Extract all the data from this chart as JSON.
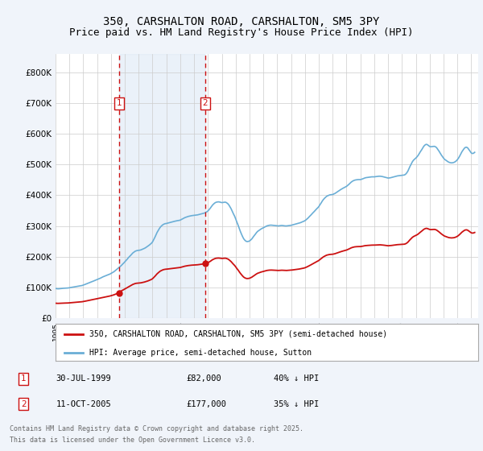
{
  "title": "350, CARSHALTON ROAD, CARSHALTON, SM5 3PY",
  "subtitle": "Price paid vs. HM Land Registry's House Price Index (HPI)",
  "title_fontsize": 10,
  "subtitle_fontsize": 9,
  "ylabel_ticks": [
    "£0",
    "£100K",
    "£200K",
    "£300K",
    "£400K",
    "£500K",
    "£600K",
    "£700K",
    "£800K"
  ],
  "ytick_vals": [
    0,
    100000,
    200000,
    300000,
    400000,
    500000,
    600000,
    700000,
    800000
  ],
  "ylim": [
    0,
    860000
  ],
  "xlim_start": 1995.0,
  "xlim_end": 2025.5,
  "background_color": "#f0f4fa",
  "plot_bg_color": "#ffffff",
  "grid_color": "#cccccc",
  "hpi_color": "#6aaed6",
  "price_color": "#cc1111",
  "marker1_date": 1999.58,
  "marker1_price": 82000,
  "marker2_date": 2005.79,
  "marker2_price": 177000,
  "marker_color": "#cc1111",
  "vline_color": "#cc1111",
  "shade_color": "#dce8f5",
  "legend_label1": "350, CARSHALTON ROAD, CARSHALTON, SM5 3PY (semi-detached house)",
  "legend_label2": "HPI: Average price, semi-detached house, Sutton",
  "footer1": "Contains HM Land Registry data © Crown copyright and database right 2025.",
  "footer2": "This data is licensed under the Open Government Licence v3.0.",
  "table_row1_num": "1",
  "table_row1_date": "30-JUL-1999",
  "table_row1_price": "£82,000",
  "table_row1_hpi": "40% ↓ HPI",
  "table_row2_num": "2",
  "table_row2_date": "11-OCT-2005",
  "table_row2_price": "£177,000",
  "table_row2_hpi": "35% ↓ HPI",
  "hpi_monthly": [
    [
      1995.0,
      96000
    ],
    [
      1995.08,
      95500
    ],
    [
      1995.17,
      95000
    ],
    [
      1995.25,
      95200
    ],
    [
      1995.33,
      95500
    ],
    [
      1995.42,
      96000
    ],
    [
      1995.5,
      96500
    ],
    [
      1995.58,
      96800
    ],
    [
      1995.67,
      97000
    ],
    [
      1995.75,
      97200
    ],
    [
      1995.83,
      97500
    ],
    [
      1995.92,
      97800
    ],
    [
      1996.0,
      98500
    ],
    [
      1996.08,
      99000
    ],
    [
      1996.17,
      99800
    ],
    [
      1996.25,
      100500
    ],
    [
      1996.33,
      101000
    ],
    [
      1996.42,
      101800
    ],
    [
      1996.5,
      102500
    ],
    [
      1996.58,
      103000
    ],
    [
      1996.67,
      103800
    ],
    [
      1996.75,
      104500
    ],
    [
      1996.83,
      105000
    ],
    [
      1996.92,
      105800
    ],
    [
      1997.0,
      107000
    ],
    [
      1997.08,
      108500
    ],
    [
      1997.17,
      110000
    ],
    [
      1997.25,
      111500
    ],
    [
      1997.33,
      113000
    ],
    [
      1997.42,
      114500
    ],
    [
      1997.5,
      116000
    ],
    [
      1997.58,
      117500
    ],
    [
      1997.67,
      119000
    ],
    [
      1997.75,
      120500
    ],
    [
      1997.83,
      122000
    ],
    [
      1997.92,
      123500
    ],
    [
      1998.0,
      125000
    ],
    [
      1998.08,
      126800
    ],
    [
      1998.17,
      128500
    ],
    [
      1998.25,
      130000
    ],
    [
      1998.33,
      132000
    ],
    [
      1998.42,
      134000
    ],
    [
      1998.5,
      135500
    ],
    [
      1998.58,
      137000
    ],
    [
      1998.67,
      138500
    ],
    [
      1998.75,
      140000
    ],
    [
      1998.83,
      141500
    ],
    [
      1998.92,
      143000
    ],
    [
      1999.0,
      145000
    ],
    [
      1999.08,
      147000
    ],
    [
      1999.17,
      149500
    ],
    [
      1999.25,
      152000
    ],
    [
      1999.33,
      155000
    ],
    [
      1999.42,
      158000
    ],
    [
      1999.5,
      161000
    ],
    [
      1999.58,
      164000
    ],
    [
      1999.67,
      167500
    ],
    [
      1999.75,
      171000
    ],
    [
      1999.83,
      175000
    ],
    [
      1999.92,
      179000
    ],
    [
      2000.0,
      183000
    ],
    [
      2000.08,
      187000
    ],
    [
      2000.17,
      191500
    ],
    [
      2000.25,
      196000
    ],
    [
      2000.33,
      200000
    ],
    [
      2000.42,
      204000
    ],
    [
      2000.5,
      208000
    ],
    [
      2000.58,
      212000
    ],
    [
      2000.67,
      215000
    ],
    [
      2000.75,
      217500
    ],
    [
      2000.83,
      219000
    ],
    [
      2000.92,
      220000
    ],
    [
      2001.0,
      220500
    ],
    [
      2001.08,
      221000
    ],
    [
      2001.17,
      222000
    ],
    [
      2001.25,
      223500
    ],
    [
      2001.33,
      225000
    ],
    [
      2001.42,
      227000
    ],
    [
      2001.5,
      229000
    ],
    [
      2001.58,
      231500
    ],
    [
      2001.67,
      234000
    ],
    [
      2001.75,
      237000
    ],
    [
      2001.83,
      240000
    ],
    [
      2001.92,
      243500
    ],
    [
      2002.0,
      248000
    ],
    [
      2002.08,
      255000
    ],
    [
      2002.17,
      263000
    ],
    [
      2002.25,
      271000
    ],
    [
      2002.33,
      279000
    ],
    [
      2002.42,
      286000
    ],
    [
      2002.5,
      292000
    ],
    [
      2002.58,
      297000
    ],
    [
      2002.67,
      301000
    ],
    [
      2002.75,
      304000
    ],
    [
      2002.83,
      306000
    ],
    [
      2002.92,
      307500
    ],
    [
      2003.0,
      308000
    ],
    [
      2003.08,
      309000
    ],
    [
      2003.17,
      310000
    ],
    [
      2003.25,
      311000
    ],
    [
      2003.33,
      312000
    ],
    [
      2003.42,
      313000
    ],
    [
      2003.5,
      314000
    ],
    [
      2003.58,
      315000
    ],
    [
      2003.67,
      316000
    ],
    [
      2003.75,
      317000
    ],
    [
      2003.83,
      317500
    ],
    [
      2003.92,
      318000
    ],
    [
      2004.0,
      319000
    ],
    [
      2004.08,
      321000
    ],
    [
      2004.17,
      323000
    ],
    [
      2004.25,
      325000
    ],
    [
      2004.33,
      327000
    ],
    [
      2004.42,
      328500
    ],
    [
      2004.5,
      330000
    ],
    [
      2004.58,
      331000
    ],
    [
      2004.67,
      332000
    ],
    [
      2004.75,
      333000
    ],
    [
      2004.83,
      333500
    ],
    [
      2004.92,
      334000
    ],
    [
      2005.0,
      334500
    ],
    [
      2005.08,
      335000
    ],
    [
      2005.17,
      335500
    ],
    [
      2005.25,
      336000
    ],
    [
      2005.33,
      337000
    ],
    [
      2005.42,
      338000
    ],
    [
      2005.5,
      339000
    ],
    [
      2005.58,
      340000
    ],
    [
      2005.67,
      341000
    ],
    [
      2005.75,
      342000
    ],
    [
      2005.83,
      344000
    ],
    [
      2005.92,
      346000
    ],
    [
      2006.0,
      349000
    ],
    [
      2006.08,
      353000
    ],
    [
      2006.17,
      358000
    ],
    [
      2006.25,
      363000
    ],
    [
      2006.33,
      368000
    ],
    [
      2006.42,
      372000
    ],
    [
      2006.5,
      375000
    ],
    [
      2006.58,
      377000
    ],
    [
      2006.67,
      378000
    ],
    [
      2006.75,
      378500
    ],
    [
      2006.83,
      378000
    ],
    [
      2006.92,
      377000
    ],
    [
      2007.0,
      376000
    ],
    [
      2007.08,
      376500
    ],
    [
      2007.17,
      377000
    ],
    [
      2007.25,
      377500
    ],
    [
      2007.33,
      376000
    ],
    [
      2007.42,
      373000
    ],
    [
      2007.5,
      369000
    ],
    [
      2007.58,
      363000
    ],
    [
      2007.67,
      356000
    ],
    [
      2007.75,
      348000
    ],
    [
      2007.83,
      340000
    ],
    [
      2007.92,
      332000
    ],
    [
      2008.0,
      323000
    ],
    [
      2008.08,
      313000
    ],
    [
      2008.17,
      303000
    ],
    [
      2008.25,
      293000
    ],
    [
      2008.33,
      283000
    ],
    [
      2008.42,
      273000
    ],
    [
      2008.5,
      265000
    ],
    [
      2008.58,
      258000
    ],
    [
      2008.67,
      253000
    ],
    [
      2008.75,
      250000
    ],
    [
      2008.83,
      249000
    ],
    [
      2008.92,
      249500
    ],
    [
      2009.0,
      251000
    ],
    [
      2009.08,
      254000
    ],
    [
      2009.17,
      258000
    ],
    [
      2009.25,
      263000
    ],
    [
      2009.33,
      268000
    ],
    [
      2009.42,
      273000
    ],
    [
      2009.5,
      278000
    ],
    [
      2009.58,
      282000
    ],
    [
      2009.67,
      285000
    ],
    [
      2009.75,
      288000
    ],
    [
      2009.83,
      290000
    ],
    [
      2009.92,
      292000
    ],
    [
      2010.0,
      294000
    ],
    [
      2010.08,
      296000
    ],
    [
      2010.17,
      298000
    ],
    [
      2010.25,
      300000
    ],
    [
      2010.33,
      301000
    ],
    [
      2010.42,
      302000
    ],
    [
      2010.5,
      302500
    ],
    [
      2010.58,
      302500
    ],
    [
      2010.67,
      302000
    ],
    [
      2010.75,
      301500
    ],
    [
      2010.83,
      301000
    ],
    [
      2010.92,
      300500
    ],
    [
      2011.0,
      300000
    ],
    [
      2011.08,
      300000
    ],
    [
      2011.17,
      300500
    ],
    [
      2011.25,
      301000
    ],
    [
      2011.33,
      301500
    ],
    [
      2011.42,
      301000
    ],
    [
      2011.5,
      300500
    ],
    [
      2011.58,
      300000
    ],
    [
      2011.67,
      300000
    ],
    [
      2011.75,
      300500
    ],
    [
      2011.83,
      301000
    ],
    [
      2011.92,
      301500
    ],
    [
      2012.0,
      302000
    ],
    [
      2012.08,
      303000
    ],
    [
      2012.17,
      304000
    ],
    [
      2012.25,
      305000
    ],
    [
      2012.33,
      306000
    ],
    [
      2012.42,
      307000
    ],
    [
      2012.5,
      308000
    ],
    [
      2012.58,
      309000
    ],
    [
      2012.67,
      310500
    ],
    [
      2012.75,
      312000
    ],
    [
      2012.83,
      313500
    ],
    [
      2012.92,
      315000
    ],
    [
      2013.0,
      317000
    ],
    [
      2013.08,
      320000
    ],
    [
      2013.17,
      323500
    ],
    [
      2013.25,
      327000
    ],
    [
      2013.33,
      331000
    ],
    [
      2013.42,
      335000
    ],
    [
      2013.5,
      339000
    ],
    [
      2013.58,
      343000
    ],
    [
      2013.67,
      347000
    ],
    [
      2013.75,
      351000
    ],
    [
      2013.83,
      355000
    ],
    [
      2013.92,
      359000
    ],
    [
      2014.0,
      363000
    ],
    [
      2014.08,
      369000
    ],
    [
      2014.17,
      375000
    ],
    [
      2014.25,
      381000
    ],
    [
      2014.33,
      386000
    ],
    [
      2014.42,
      390500
    ],
    [
      2014.5,
      394000
    ],
    [
      2014.58,
      397000
    ],
    [
      2014.67,
      399000
    ],
    [
      2014.75,
      400500
    ],
    [
      2014.83,
      401500
    ],
    [
      2014.92,
      402000
    ],
    [
      2015.0,
      402500
    ],
    [
      2015.08,
      404000
    ],
    [
      2015.17,
      406000
    ],
    [
      2015.25,
      408500
    ],
    [
      2015.33,
      411000
    ],
    [
      2015.42,
      413500
    ],
    [
      2015.5,
      416000
    ],
    [
      2015.58,
      418500
    ],
    [
      2015.67,
      421000
    ],
    [
      2015.75,
      423000
    ],
    [
      2015.83,
      425000
    ],
    [
      2015.92,
      427000
    ],
    [
      2016.0,
      429000
    ],
    [
      2016.08,
      432000
    ],
    [
      2016.17,
      435500
    ],
    [
      2016.25,
      439000
    ],
    [
      2016.33,
      442500
    ],
    [
      2016.42,
      445500
    ],
    [
      2016.5,
      447500
    ],
    [
      2016.58,
      449000
    ],
    [
      2016.67,
      450000
    ],
    [
      2016.75,
      450500
    ],
    [
      2016.83,
      451000
    ],
    [
      2016.92,
      451000
    ],
    [
      2017.0,
      451000
    ],
    [
      2017.08,
      452000
    ],
    [
      2017.17,
      453500
    ],
    [
      2017.25,
      455000
    ],
    [
      2017.33,
      456500
    ],
    [
      2017.42,
      457500
    ],
    [
      2017.5,
      458000
    ],
    [
      2017.58,
      458500
    ],
    [
      2017.67,
      459000
    ],
    [
      2017.75,
      459500
    ],
    [
      2017.83,
      460000
    ],
    [
      2017.92,
      460000
    ],
    [
      2018.0,
      460000
    ],
    [
      2018.08,
      460500
    ],
    [
      2018.17,
      461000
    ],
    [
      2018.25,
      461500
    ],
    [
      2018.33,
      462000
    ],
    [
      2018.42,
      462000
    ],
    [
      2018.5,
      461500
    ],
    [
      2018.58,
      461000
    ],
    [
      2018.67,
      460000
    ],
    [
      2018.75,
      459000
    ],
    [
      2018.83,
      458000
    ],
    [
      2018.92,
      457000
    ],
    [
      2019.0,
      456000
    ],
    [
      2019.08,
      456500
    ],
    [
      2019.17,
      457000
    ],
    [
      2019.25,
      458000
    ],
    [
      2019.33,
      459000
    ],
    [
      2019.42,
      460000
    ],
    [
      2019.5,
      461000
    ],
    [
      2019.58,
      462000
    ],
    [
      2019.67,
      463000
    ],
    [
      2019.75,
      463500
    ],
    [
      2019.83,
      464000
    ],
    [
      2019.92,
      464500
    ],
    [
      2020.0,
      465000
    ],
    [
      2020.08,
      465500
    ],
    [
      2020.17,
      466000
    ],
    [
      2020.25,
      468000
    ],
    [
      2020.33,
      472000
    ],
    [
      2020.42,
      478000
    ],
    [
      2020.5,
      486000
    ],
    [
      2020.58,
      494000
    ],
    [
      2020.67,
      502000
    ],
    [
      2020.75,
      509000
    ],
    [
      2020.83,
      514000
    ],
    [
      2020.92,
      518000
    ],
    [
      2021.0,
      521000
    ],
    [
      2021.08,
      525000
    ],
    [
      2021.17,
      530000
    ],
    [
      2021.25,
      536000
    ],
    [
      2021.33,
      542000
    ],
    [
      2021.42,
      548000
    ],
    [
      2021.5,
      554000
    ],
    [
      2021.58,
      560000
    ],
    [
      2021.67,
      564000
    ],
    [
      2021.75,
      566000
    ],
    [
      2021.83,
      565000
    ],
    [
      2021.92,
      562000
    ],
    [
      2022.0,
      559000
    ],
    [
      2022.08,
      558000
    ],
    [
      2022.17,
      558500
    ],
    [
      2022.25,
      559000
    ],
    [
      2022.33,
      559500
    ],
    [
      2022.42,
      558000
    ],
    [
      2022.5,
      555000
    ],
    [
      2022.58,
      550000
    ],
    [
      2022.67,
      544000
    ],
    [
      2022.75,
      538000
    ],
    [
      2022.83,
      532000
    ],
    [
      2022.92,
      526000
    ],
    [
      2023.0,
      521000
    ],
    [
      2023.08,
      517000
    ],
    [
      2023.17,
      514000
    ],
    [
      2023.25,
      511000
    ],
    [
      2023.33,
      509000
    ],
    [
      2023.42,
      507000
    ],
    [
      2023.5,
      506000
    ],
    [
      2023.58,
      505500
    ],
    [
      2023.67,
      506000
    ],
    [
      2023.75,
      507000
    ],
    [
      2023.83,
      509000
    ],
    [
      2023.92,
      512000
    ],
    [
      2024.0,
      516000
    ],
    [
      2024.08,
      521000
    ],
    [
      2024.17,
      528000
    ],
    [
      2024.25,
      535000
    ],
    [
      2024.33,
      542000
    ],
    [
      2024.42,
      548000
    ],
    [
      2024.5,
      553000
    ],
    [
      2024.58,
      556000
    ],
    [
      2024.67,
      556500
    ],
    [
      2024.75,
      554000
    ],
    [
      2024.83,
      549000
    ],
    [
      2024.92,
      543000
    ],
    [
      2025.0,
      538000
    ],
    [
      2025.08,
      536000
    ],
    [
      2025.17,
      537000
    ],
    [
      2025.25,
      540000
    ]
  ]
}
